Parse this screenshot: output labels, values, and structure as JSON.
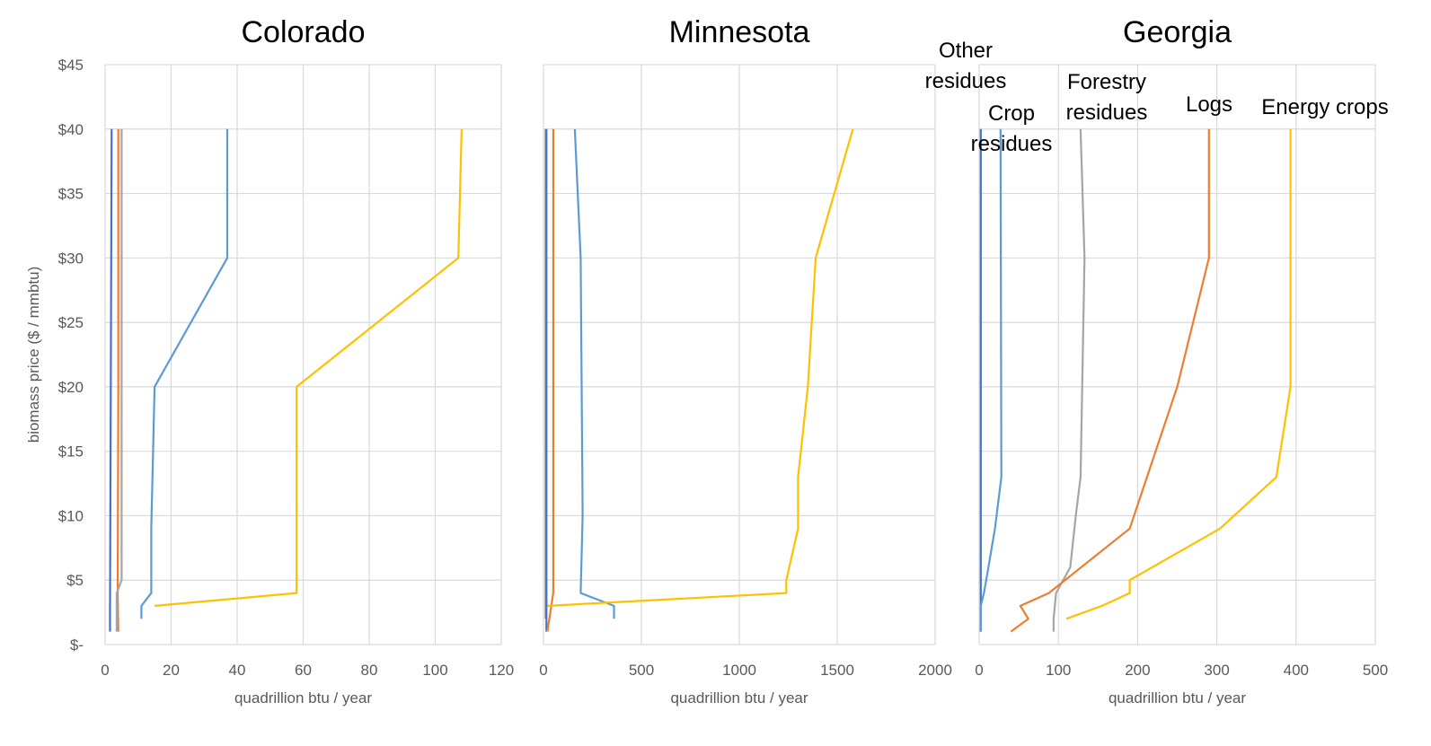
{
  "chart_data": {
    "type": "line",
    "ylabel": "biomass price ($ / mmbtu)",
    "y_ticks": [
      "$-",
      "$5",
      "$10",
      "$15",
      "$20",
      "$25",
      "$30",
      "$35",
      "$40",
      "$45"
    ],
    "ylim": [
      0,
      45
    ],
    "grid": true,
    "colors": {
      "crop_residues": "#5B9BD5",
      "logs": "#ED7D31",
      "forestry_residues": "#A5A5A5",
      "energy_crops": "#FFC000",
      "other_residues": "#4472C4"
    },
    "panels": [
      {
        "title": "Colorado",
        "xlabel": "quadrillion btu / year",
        "xlim": [
          0,
          120
        ],
        "x_ticks": [
          "0",
          "20",
          "40",
          "60",
          "80",
          "100",
          "120"
        ],
        "series": [
          {
            "key": "other_residues",
            "points": [
              [
                1.5,
                1
              ],
              [
                1.5,
                3
              ],
              [
                2,
                40
              ]
            ]
          },
          {
            "key": "logs",
            "points": [
              [
                4,
                1
              ],
              [
                3.8,
                4
              ],
              [
                4,
                20
              ],
              [
                4,
                40
              ]
            ]
          },
          {
            "key": "forestry_residues",
            "points": [
              [
                3.5,
                1
              ],
              [
                3.5,
                4
              ],
              [
                5,
                5
              ],
              [
                5,
                40
              ]
            ]
          },
          {
            "key": "crop_residues",
            "points": [
              [
                11,
                2
              ],
              [
                11,
                3
              ],
              [
                14,
                4
              ],
              [
                14,
                9
              ],
              [
                15,
                20
              ],
              [
                37,
                30
              ],
              [
                37,
                40
              ]
            ]
          },
          {
            "key": "energy_crops",
            "points": [
              [
                15,
                3
              ],
              [
                58,
                4
              ],
              [
                58,
                20
              ],
              [
                107,
                30
              ],
              [
                108,
                40
              ]
            ]
          }
        ]
      },
      {
        "title": "Minnesota",
        "xlabel": "quadrillion btu / year",
        "xlim": [
          0,
          2000
        ],
        "x_ticks": [
          "0",
          "500",
          "1000",
          "1500",
          "2000"
        ],
        "series": [
          {
            "key": "forestry_residues",
            "points": [
              [
                10,
                2
              ],
              [
                10,
                40
              ]
            ]
          },
          {
            "key": "other_residues",
            "points": [
              [
                15,
                1
              ],
              [
                15,
                40
              ]
            ]
          },
          {
            "key": "logs",
            "points": [
              [
                20,
                1
              ],
              [
                50,
                4
              ],
              [
                50,
                40
              ]
            ]
          },
          {
            "key": "crop_residues",
            "points": [
              [
                360,
                2
              ],
              [
                360,
                3
              ],
              [
                190,
                4
              ],
              [
                200,
                10
              ],
              [
                190,
                30
              ],
              [
                160,
                40
              ]
            ]
          },
          {
            "key": "energy_crops",
            "points": [
              [
                20,
                3
              ],
              [
                1240,
                4
              ],
              [
                1240,
                5
              ],
              [
                1300,
                9
              ],
              [
                1300,
                13
              ],
              [
                1350,
                20
              ],
              [
                1390,
                30
              ],
              [
                1580,
                40
              ]
            ]
          }
        ]
      },
      {
        "title": "Georgia",
        "xlabel": "quadrillion btu / year",
        "xlim": [
          0,
          500
        ],
        "x_ticks": [
          "0",
          "100",
          "200",
          "300",
          "400",
          "500"
        ],
        "series": [
          {
            "key": "other_residues",
            "points": [
              [
                2,
                1
              ],
              [
                2,
                40
              ]
            ]
          },
          {
            "key": "crop_residues",
            "points": [
              [
                2,
                1
              ],
              [
                2,
                3
              ],
              [
                6,
                4
              ],
              [
                9,
                5
              ],
              [
                20,
                9
              ],
              [
                28,
                13
              ],
              [
                27,
                40
              ]
            ]
          },
          {
            "key": "forestry_residues",
            "points": [
              [
                94,
                1
              ],
              [
                94,
                2
              ],
              [
                97,
                4
              ],
              [
                115,
                6
              ],
              [
                122,
                10
              ],
              [
                128,
                13
              ],
              [
                133,
                30
              ],
              [
                128,
                40
              ]
            ]
          },
          {
            "key": "logs",
            "points": [
              [
                40,
                1
              ],
              [
                62,
                2
              ],
              [
                52,
                3
              ],
              [
                88,
                4
              ],
              [
                190,
                9
              ],
              [
                250,
                20
              ],
              [
                290,
                30
              ],
              [
                290,
                40
              ]
            ]
          },
          {
            "key": "energy_crops",
            "points": [
              [
                110,
                2
              ],
              [
                155,
                3
              ],
              [
                190,
                4
              ],
              [
                190,
                5
              ],
              [
                304,
                9
              ],
              [
                375,
                13
              ],
              [
                393,
                20
              ],
              [
                393,
                40
              ]
            ]
          }
        ]
      }
    ],
    "annotations": {
      "other_residues": [
        "Other",
        "residues"
      ],
      "crop_residues": [
        "Crop",
        "residues"
      ],
      "forestry_residues": [
        "Forestry",
        "residues"
      ],
      "logs": [
        "Logs"
      ],
      "energy_crops": [
        "Energy crops"
      ]
    }
  }
}
